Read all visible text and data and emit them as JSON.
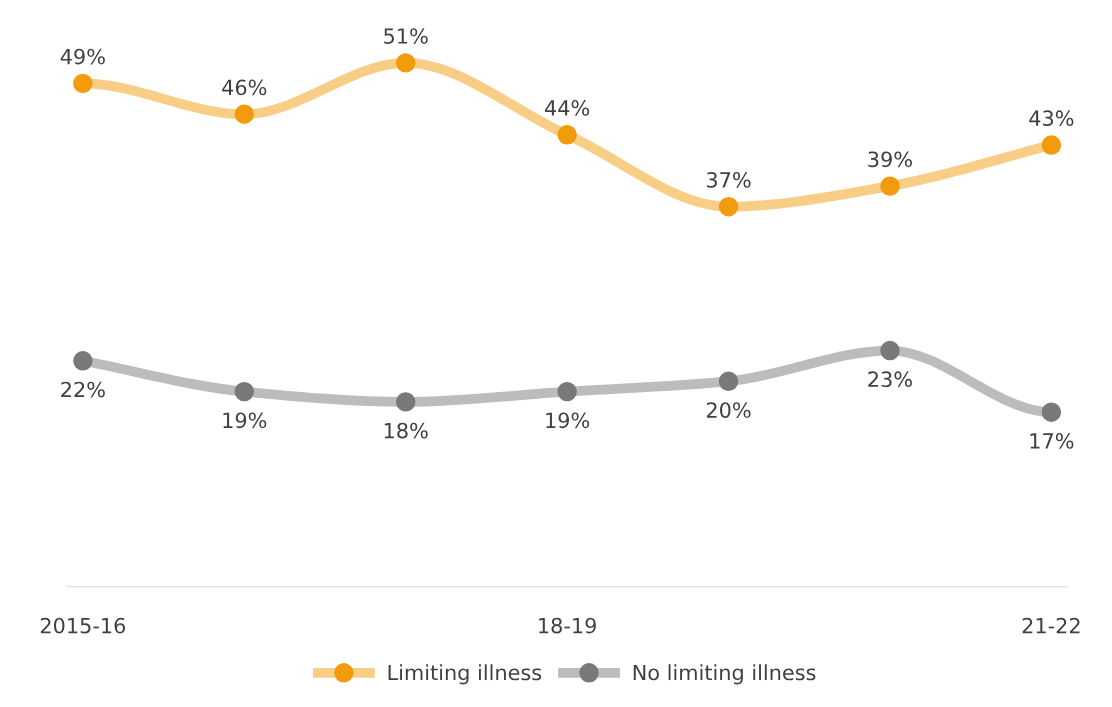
{
  "chart_data": {
    "type": "line",
    "categories": [
      "2015-16",
      null,
      null,
      "18-19",
      null,
      null,
      "21-22"
    ],
    "series": [
      {
        "name": "Limiting illness",
        "color": "#f29b0c",
        "values": [
          49,
          46,
          51,
          44,
          37,
          39,
          43
        ],
        "value_labels": [
          "49%",
          "46%",
          "51%",
          "44%",
          "37%",
          "39%",
          "43%"
        ]
      },
      {
        "name": "No limiting illness",
        "color": "#7a7878",
        "values": [
          22,
          19,
          18,
          19,
          20,
          23,
          17
        ],
        "value_labels": [
          "22%",
          "19%",
          "18%",
          "19%",
          "20%",
          "23%",
          "17%"
        ]
      }
    ],
    "tick_labels": "x",
    "marker": "circle",
    "line_style": "solid",
    "grid": false,
    "legend": "bottom"
  }
}
